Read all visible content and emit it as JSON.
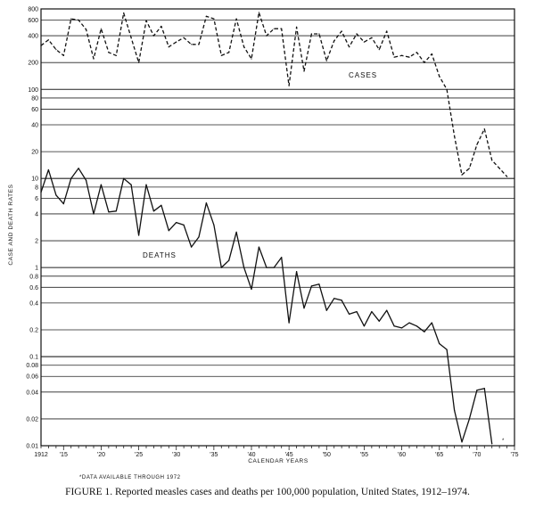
{
  "chart_data": {
    "type": "line",
    "title": "",
    "caption": "FIGURE 1. Reported measles cases and deaths per 100,000 population, United States, 1912–1974.",
    "xlabel": "CALENDAR YEARS",
    "ylabel": "CASE AND DEATH RATES",
    "yscale": "log",
    "xlim": [
      1912,
      1975
    ],
    "ylim": [
      0.01,
      800
    ],
    "x_ticks": [
      {
        "value": 1912,
        "label": "1912"
      },
      {
        "value": 1915,
        "label": "'15"
      },
      {
        "value": 1920,
        "label": "'20"
      },
      {
        "value": 1925,
        "label": "'25"
      },
      {
        "value": 1930,
        "label": "'30"
      },
      {
        "value": 1935,
        "label": "'35"
      },
      {
        "value": 1940,
        "label": "'40"
      },
      {
        "value": 1945,
        "label": "'45"
      },
      {
        "value": 1950,
        "label": "'50"
      },
      {
        "value": 1955,
        "label": "'55"
      },
      {
        "value": 1960,
        "label": "'60"
      },
      {
        "value": 1965,
        "label": "'65"
      },
      {
        "value": 1970,
        "label": "'70"
      },
      {
        "value": 1975,
        "label": "'75"
      }
    ],
    "y_ticks": [
      {
        "value": 0.01,
        "label": "0.01"
      },
      {
        "value": 0.02,
        "label": "0.02"
      },
      {
        "value": 0.04,
        "label": "0.04"
      },
      {
        "value": 0.06,
        "label": "0.06"
      },
      {
        "value": 0.08,
        "label": "0.08"
      },
      {
        "value": 0.1,
        "label": "0.1"
      },
      {
        "value": 0.2,
        "label": "0.2"
      },
      {
        "value": 0.4,
        "label": "0.4"
      },
      {
        "value": 0.6,
        "label": "0.6"
      },
      {
        "value": 0.8,
        "label": "0.8"
      },
      {
        "value": 1,
        "label": "1"
      },
      {
        "value": 2,
        "label": "2"
      },
      {
        "value": 4,
        "label": "4"
      },
      {
        "value": 6,
        "label": "6"
      },
      {
        "value": 8,
        "label": "8"
      },
      {
        "value": 10,
        "label": "10"
      },
      {
        "value": 20,
        "label": "20"
      },
      {
        "value": 40,
        "label": "40"
      },
      {
        "value": 60,
        "label": "60"
      },
      {
        "value": 80,
        "label": "80"
      },
      {
        "value": 100,
        "label": "100"
      },
      {
        "value": 200,
        "label": "200"
      },
      {
        "value": 400,
        "label": "400"
      },
      {
        "value": 600,
        "label": "600"
      },
      {
        "value": 800,
        "label": "800"
      }
    ],
    "grid": "horizontal",
    "series": [
      {
        "name": "CASES",
        "style": "dashed",
        "x": [
          1912,
          1913,
          1914,
          1915,
          1916,
          1917,
          1918,
          1919,
          1920,
          1921,
          1922,
          1923,
          1924,
          1925,
          1926,
          1927,
          1928,
          1929,
          1930,
          1931,
          1932,
          1933,
          1934,
          1935,
          1936,
          1937,
          1938,
          1939,
          1940,
          1941,
          1942,
          1943,
          1944,
          1945,
          1946,
          1947,
          1948,
          1949,
          1950,
          1951,
          1952,
          1953,
          1954,
          1955,
          1956,
          1957,
          1958,
          1959,
          1960,
          1961,
          1962,
          1963,
          1964,
          1965,
          1966,
          1967,
          1968,
          1969,
          1970,
          1971,
          1972,
          1973,
          1974
        ],
        "values": [
          310,
          360,
          280,
          240,
          620,
          600,
          470,
          220,
          480,
          260,
          240,
          720,
          380,
          200,
          590,
          400,
          510,
          300,
          340,
          380,
          320,
          320,
          660,
          620,
          240,
          260,
          620,
          300,
          220,
          730,
          400,
          480,
          480,
          110,
          500,
          160,
          420,
          420,
          210,
          350,
          450,
          300,
          420,
          340,
          380,
          280,
          450,
          230,
          240,
          230,
          260,
          200,
          250,
          140,
          100,
          30,
          11,
          13,
          24,
          36,
          16,
          13,
          10.5
        ]
      },
      {
        "name": "DEATHS",
        "style": "solid",
        "x": [
          1912,
          1913,
          1914,
          1915,
          1916,
          1917,
          1918,
          1919,
          1920,
          1921,
          1922,
          1923,
          1924,
          1925,
          1926,
          1927,
          1928,
          1929,
          1930,
          1931,
          1932,
          1933,
          1934,
          1935,
          1936,
          1937,
          1938,
          1939,
          1940,
          1941,
          1942,
          1943,
          1944,
          1945,
          1946,
          1947,
          1948,
          1949,
          1950,
          1951,
          1952,
          1953,
          1954,
          1955,
          1956,
          1957,
          1958,
          1959,
          1960,
          1961,
          1962,
          1963,
          1964,
          1965,
          1966,
          1967,
          1968,
          1969,
          1970,
          1971,
          1972
        ],
        "values": [
          7,
          12.5,
          6.5,
          5.2,
          10,
          13,
          9.5,
          4,
          8.5,
          4.2,
          4.3,
          10,
          8.5,
          2.3,
          8.5,
          4.3,
          5,
          2.6,
          3.2,
          3,
          1.7,
          2.2,
          5.3,
          3,
          1,
          1.2,
          2.5,
          1,
          0.57,
          1.7,
          1,
          1,
          1.3,
          0.24,
          0.9,
          0.35,
          0.62,
          0.65,
          0.33,
          0.45,
          0.43,
          0.3,
          0.32,
          0.22,
          0.32,
          0.25,
          0.33,
          0.22,
          0.21,
          0.24,
          0.22,
          0.19,
          0.24,
          0.14,
          0.12,
          0.025,
          0.011,
          0.02,
          0.042,
          0.044,
          0.0105
        ]
      }
    ],
    "annotations": [
      {
        "text": "CASES",
        "target": "cases-series"
      },
      {
        "text": "DEATHS",
        "target": "deaths-series"
      },
      {
        "text": "*",
        "position": "end of deaths series (1972)"
      },
      {
        "text": "*DATA AVAILABLE THROUGH 1972",
        "position": "below x-axis, left"
      }
    ]
  }
}
